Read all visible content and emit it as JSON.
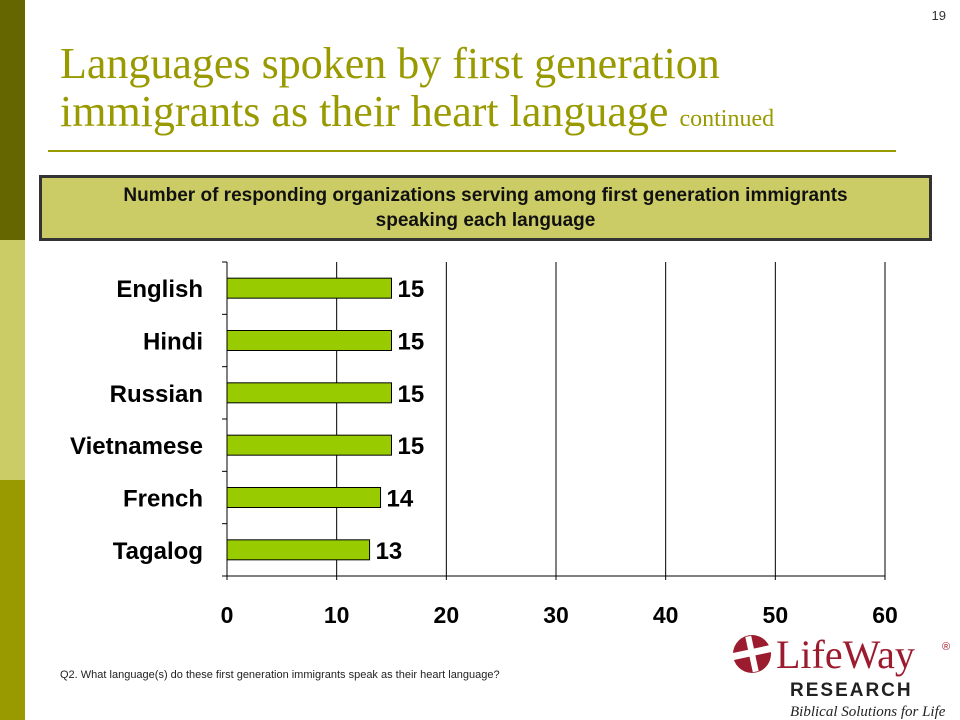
{
  "page_number": "19",
  "title": {
    "main": "Languages spoken by first generation immigrants as their heart language",
    "suffix": "continued"
  },
  "subtitle": "Number of responding organizations serving among first generation immigrants speaking each language",
  "footnote": "Q2. What language(s) do these first generation immigrants speak as their heart language?",
  "logo": {
    "name": "LifeWay",
    "registered": "®",
    "line2": "RESEARCH",
    "tagline": "Biblical Solutions for Life"
  },
  "colors": {
    "bar": "#99CC00",
    "bar_outline": "#000000",
    "title": "#999900",
    "subtitle_bg": "#CCCC66",
    "logo_red": "#9B1C2E"
  },
  "chart_data": {
    "type": "bar",
    "orientation": "horizontal",
    "categories": [
      "English",
      "Hindi",
      "Russian",
      "Vietnamese",
      "French",
      "Tagalog"
    ],
    "values": [
      15,
      15,
      15,
      15,
      14,
      13
    ],
    "data_labels": [
      "15",
      "15",
      "15",
      "15",
      "14",
      "13"
    ],
    "xlim": [
      0,
      60
    ],
    "xticks": [
      "0",
      "10",
      "20",
      "30",
      "40",
      "50",
      "60"
    ],
    "grid": "vertical",
    "legend": "none"
  }
}
